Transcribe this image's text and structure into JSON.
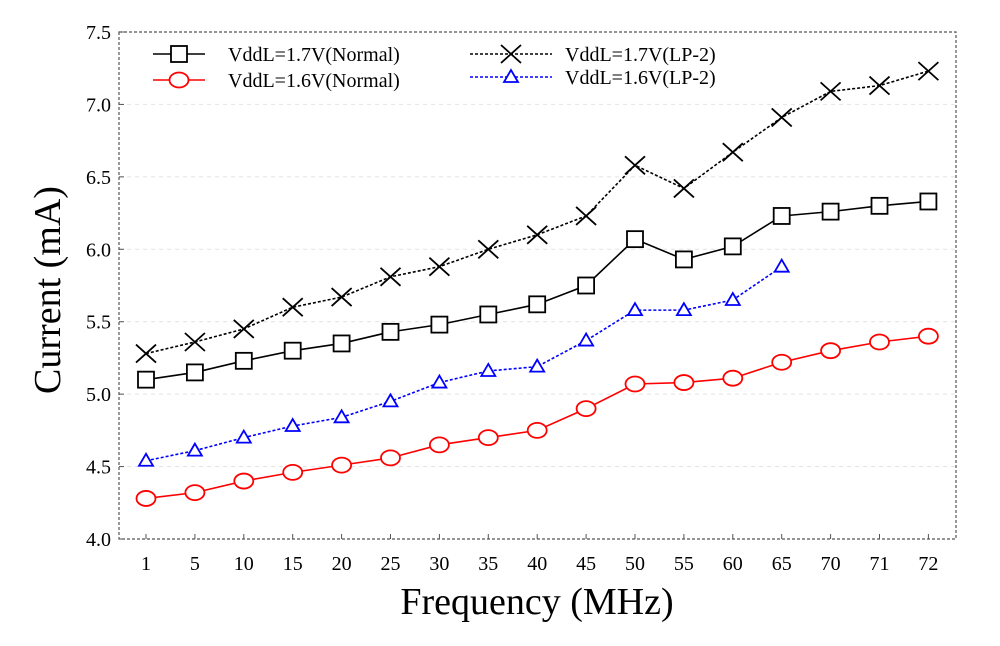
{
  "chart_data": {
    "type": "line",
    "xlabel": "Frequency (MHz)",
    "ylabel": "Current (mA)",
    "categories": [
      "1",
      "5",
      "10",
      "15",
      "20",
      "25",
      "30",
      "35",
      "40",
      "45",
      "50",
      "55",
      "60",
      "65",
      "70",
      "71",
      "72"
    ],
    "ylim": [
      4.0,
      7.5
    ],
    "yticks": [
      "4.0",
      "4.5",
      "5.0",
      "5.5",
      "6.0",
      "6.5",
      "7.0",
      "7.5"
    ],
    "grid": "horizontal dashed",
    "legend_position": "top",
    "series": [
      {
        "name": "VddL=1.7V(Normal)",
        "color": "#000000",
        "marker": "square",
        "line": "solid",
        "values": [
          5.1,
          5.15,
          5.23,
          5.3,
          5.35,
          5.43,
          5.48,
          5.55,
          5.62,
          5.75,
          6.07,
          5.93,
          6.02,
          6.23,
          6.26,
          6.3,
          6.33
        ]
      },
      {
        "name": "VddL=1.6V(Normal)",
        "color": "#ff0000",
        "marker": "circle",
        "line": "solid",
        "values": [
          4.28,
          4.32,
          4.4,
          4.46,
          4.51,
          4.56,
          4.65,
          4.7,
          4.75,
          4.9,
          5.07,
          5.08,
          5.11,
          5.22,
          5.3,
          5.36,
          5.4
        ]
      },
      {
        "name": "VddL=1.7V(LP-2)",
        "color": "#000000",
        "marker": "x",
        "line": "dotted",
        "values": [
          5.28,
          5.36,
          5.45,
          5.6,
          5.67,
          5.81,
          5.88,
          6.0,
          6.1,
          6.23,
          6.58,
          6.42,
          6.67,
          6.91,
          7.09,
          7.13,
          7.23
        ]
      },
      {
        "name": "VddL=1.6V(LP-2)",
        "color": "#0000ff",
        "marker": "triangle",
        "line": "dotted",
        "values": [
          4.54,
          4.61,
          4.7,
          4.78,
          4.84,
          4.95,
          5.08,
          5.16,
          5.19,
          5.37,
          5.58,
          5.58,
          5.65,
          5.88,
          null,
          null,
          null
        ]
      }
    ]
  }
}
